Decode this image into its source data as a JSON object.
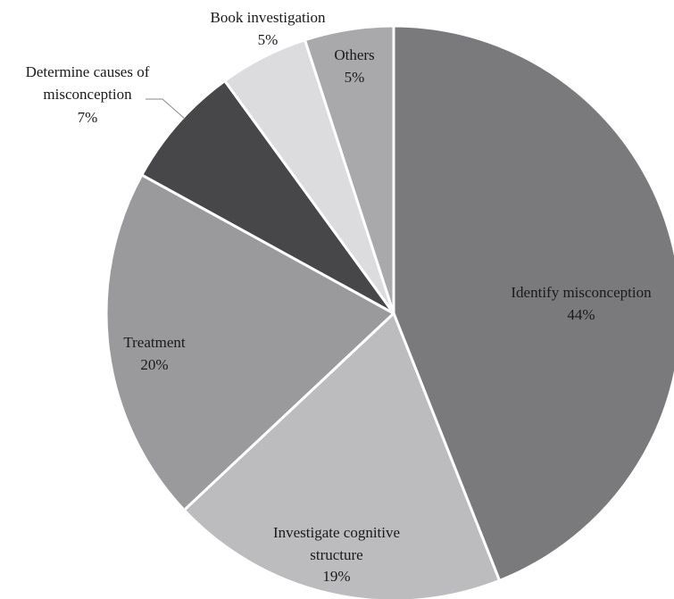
{
  "chart_data": {
    "type": "pie",
    "title": "",
    "slices": [
      {
        "label": "Identify misconception",
        "value": 44,
        "pct_label": "44%",
        "color": "#7a7a7d"
      },
      {
        "label": "Investigate cognitive structure",
        "value": 19,
        "pct_label": "19%",
        "color": "#bcbcbe"
      },
      {
        "label": "Treatment",
        "value": 20,
        "pct_label": "20%",
        "color": "#9a9a9c"
      },
      {
        "label": "Determine causes of misconception",
        "value": 7,
        "pct_label": "7%",
        "color": "#47474a"
      },
      {
        "label": "Book investigation",
        "value": 5,
        "pct_label": "5%",
        "color": "#dcdcde"
      },
      {
        "label": "Others",
        "value": 5,
        "pct_label": "5%",
        "color": "#a9a9ab"
      }
    ],
    "start": "12 o'clock",
    "direction": "clockwise",
    "legend": "none"
  }
}
